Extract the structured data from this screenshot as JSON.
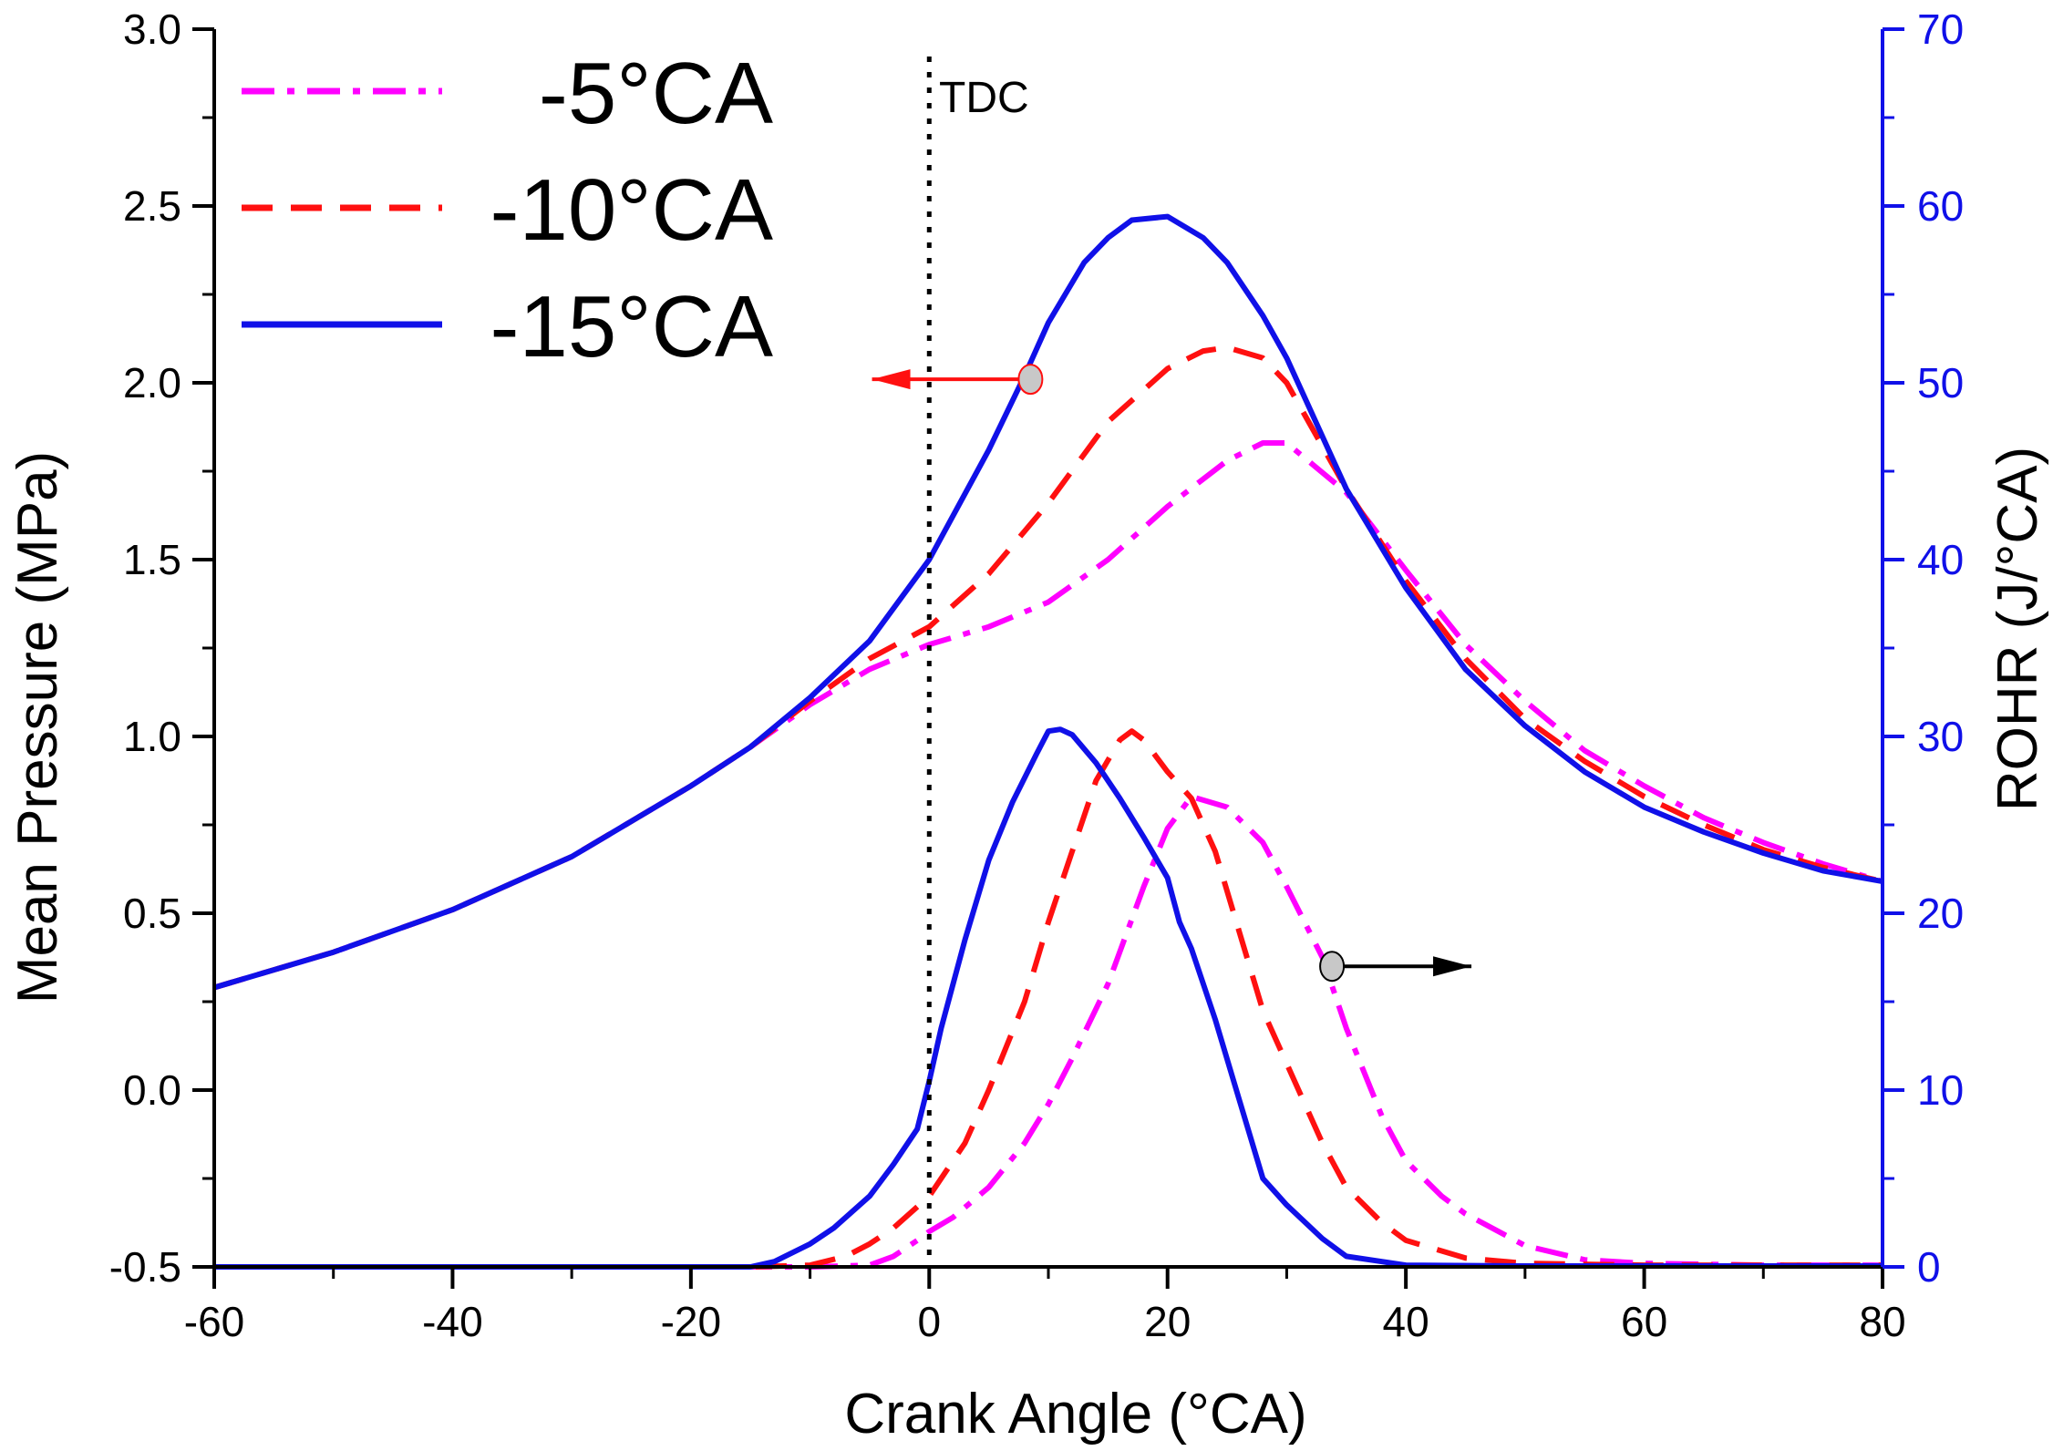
{
  "chart_data": {
    "type": "line",
    "xlabel": "Crank Angle (°CA)",
    "ylabel_left": "Mean Pressure (MPa)",
    "ylabel_right": "ROHR (J/°CA)",
    "xlim": [
      -60,
      80
    ],
    "ylim_left": [
      -0.5,
      3.0
    ],
    "ylim_right": [
      0,
      70
    ],
    "x_ticks": [
      -60,
      -40,
      -20,
      0,
      20,
      40,
      60,
      80
    ],
    "y_left_ticks": [
      -0.5,
      0.0,
      0.5,
      1.0,
      1.5,
      2.0,
      2.5,
      3.0
    ],
    "y_left_tick_labels": [
      "-0.5",
      "0.0",
      "0.5",
      "1.0",
      "1.5",
      "2.0",
      "2.5",
      "3.0"
    ],
    "y_right_ticks": [
      0,
      10,
      20,
      30,
      40,
      50,
      60,
      70
    ],
    "tdc_label": "TDC",
    "tdc_x": 0,
    "right_axis_color": "#1010e8",
    "series": [
      {
        "name": "-5°CA",
        "color": "#ff00ff",
        "dash": "dashdot",
        "pressure": {
          "x": [
            -60,
            -50,
            -40,
            -30,
            -20,
            -15,
            -10,
            -5,
            0,
            5,
            10,
            15,
            20,
            25,
            28,
            30,
            35,
            40,
            45,
            50,
            55,
            60,
            65,
            70,
            75,
            80
          ],
          "y": [
            0.29,
            0.39,
            0.51,
            0.66,
            0.86,
            0.97,
            1.09,
            1.19,
            1.26,
            1.31,
            1.38,
            1.5,
            1.65,
            1.78,
            1.83,
            1.83,
            1.69,
            1.47,
            1.26,
            1.1,
            0.96,
            0.86,
            0.77,
            0.7,
            0.64,
            0.59
          ]
        },
        "rohr": {
          "x": [
            -60,
            -20,
            -10,
            -5,
            -3,
            -1,
            0,
            2,
            5,
            8,
            10,
            12,
            15,
            18,
            20,
            22,
            25,
            28,
            30,
            33,
            35,
            38,
            40,
            43,
            45,
            50,
            55,
            60,
            70,
            80
          ],
          "y": [
            0,
            0,
            0,
            0.1,
            0.6,
            1.5,
            2.0,
            2.8,
            4.5,
            7.0,
            9.2,
            11.8,
            16.0,
            21.5,
            24.8,
            26.6,
            26.0,
            24.0,
            21.5,
            17.5,
            13.5,
            8.5,
            6.0,
            4.0,
            3.0,
            1.2,
            0.4,
            0.2,
            0.1,
            0.1
          ]
        }
      },
      {
        "name": "-10°CA",
        "color": "#ff1010",
        "dash": "dash",
        "pressure": {
          "x": [
            -60,
            -50,
            -40,
            -30,
            -20,
            -15,
            -10,
            -5,
            0,
            5,
            10,
            15,
            20,
            23,
            25,
            28,
            30,
            35,
            40,
            45,
            50,
            55,
            60,
            65,
            70,
            75,
            80
          ],
          "y": [
            0.29,
            0.39,
            0.51,
            0.66,
            0.86,
            0.97,
            1.1,
            1.22,
            1.31,
            1.46,
            1.66,
            1.89,
            2.04,
            2.09,
            2.1,
            2.07,
            2.0,
            1.7,
            1.44,
            1.22,
            1.05,
            0.93,
            0.83,
            0.75,
            0.68,
            0.63,
            0.59
          ]
        },
        "rohr": {
          "x": [
            -60,
            -15,
            -10,
            -7,
            -5,
            -3,
            0,
            3,
            5,
            8,
            10,
            12,
            14,
            16,
            17,
            18,
            20,
            22,
            24,
            26,
            28,
            30,
            33,
            35,
            38,
            40,
            45,
            50,
            60,
            80
          ],
          "y": [
            0,
            0,
            0.1,
            0.6,
            1.3,
            2.2,
            4.0,
            7.0,
            10.0,
            15.0,
            19.5,
            23.5,
            27.5,
            29.8,
            30.3,
            29.8,
            28.0,
            26.5,
            23.5,
            19.0,
            14.5,
            11.5,
            7.0,
            4.5,
            2.5,
            1.5,
            0.5,
            0.2,
            0.1,
            0.1
          ]
        }
      },
      {
        "name": "-15°CA",
        "color": "#1010e8",
        "dash": "solid",
        "pressure": {
          "x": [
            -60,
            -50,
            -40,
            -30,
            -20,
            -15,
            -10,
            -5,
            0,
            5,
            8,
            10,
            13,
            15,
            17,
            20,
            23,
            25,
            28,
            30,
            35,
            40,
            45,
            50,
            55,
            60,
            65,
            70,
            75,
            80
          ],
          "y": [
            0.29,
            0.39,
            0.51,
            0.66,
            0.86,
            0.97,
            1.11,
            1.27,
            1.5,
            1.81,
            2.02,
            2.17,
            2.34,
            2.41,
            2.46,
            2.47,
            2.41,
            2.34,
            2.19,
            2.07,
            1.7,
            1.42,
            1.19,
            1.03,
            0.9,
            0.8,
            0.73,
            0.67,
            0.62,
            0.59
          ]
        },
        "rohr": {
          "x": [
            -60,
            -15,
            -13,
            -10,
            -8,
            -5,
            -3,
            -1,
            0,
            1,
            3,
            5,
            7,
            9,
            10,
            11,
            12,
            14,
            16,
            18,
            20,
            21,
            22,
            24,
            26,
            28,
            30,
            33,
            35,
            38,
            40,
            50,
            80
          ],
          "y": [
            0,
            0,
            0.3,
            1.3,
            2.2,
            4.0,
            5.8,
            7.8,
            10.5,
            13.5,
            18.5,
            23.0,
            26.3,
            29.0,
            30.3,
            30.4,
            30.1,
            28.5,
            26.5,
            24.3,
            22.0,
            19.5,
            18.0,
            14.0,
            9.5,
            5.0,
            3.5,
            1.6,
            0.6,
            0.3,
            0.1,
            0.05,
            0.05
          ]
        }
      }
    ],
    "annotations": [
      {
        "marker": "circle",
        "at_axis": "left",
        "x": 8.5,
        "y": 2.01,
        "arrow_to_x": -4.8,
        "color": "#ff1010",
        "meaning": "pressure curves read left axis"
      },
      {
        "marker": "circle",
        "at_axis": "right",
        "x": 33.8,
        "y": 17.0,
        "arrow_to_x": 45.5,
        "color": "#000000",
        "meaning": "ROHR curves read right axis"
      }
    ]
  }
}
